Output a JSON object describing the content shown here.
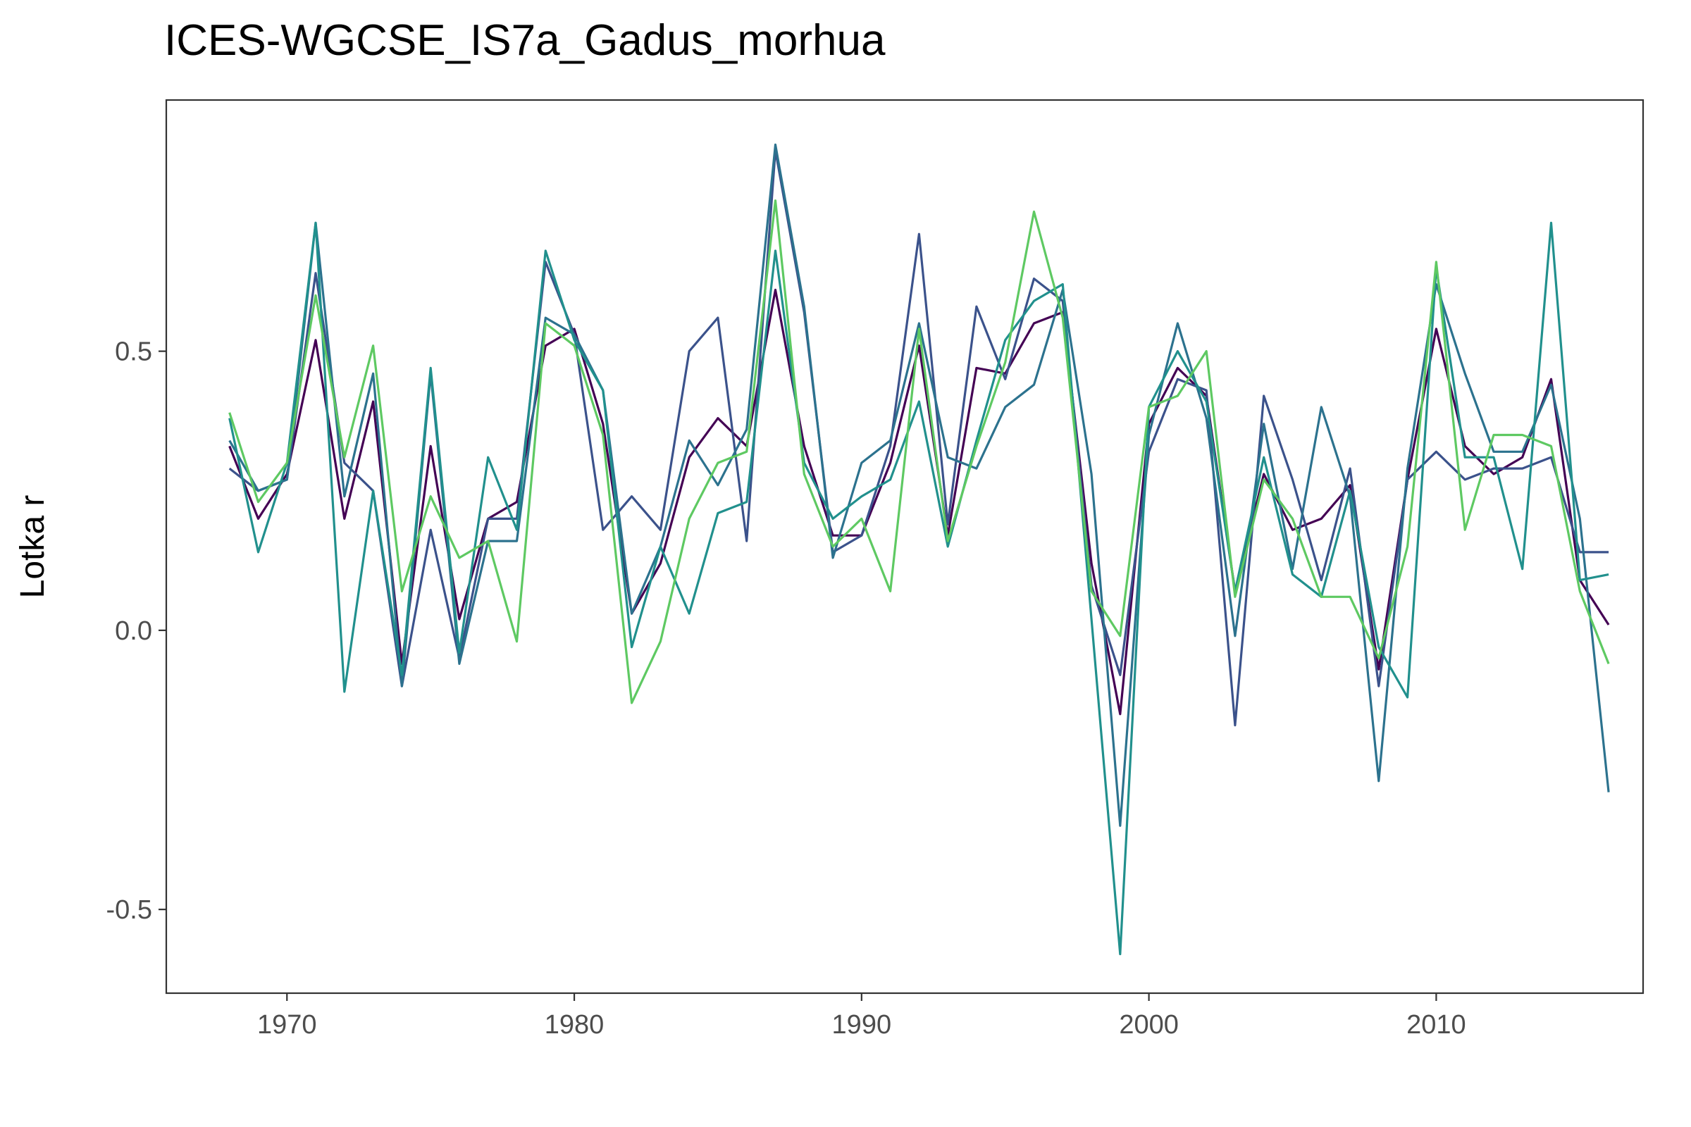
{
  "chart_data": {
    "type": "line",
    "title": "ICES-WGCSE_IS7a_Gadus_morhua",
    "xlabel": "",
    "ylabel": "Lotka r",
    "xlim": [
      1965.8,
      2017.2
    ],
    "ylim": [
      -0.65,
      0.95
    ],
    "xticks": [
      1970,
      1980,
      1990,
      2000,
      2010
    ],
    "xtick_labels": [
      "1970",
      "1980",
      "1990",
      "2000",
      "2010"
    ],
    "yticks": [
      -0.5,
      0.0,
      0.5
    ],
    "ytick_labels": [
      "-0.5",
      "0.0",
      "0.5"
    ],
    "grid": false,
    "legend": "none",
    "x": [
      1968,
      1969,
      1970,
      1971,
      1972,
      1973,
      1974,
      1975,
      1976,
      1977,
      1978,
      1979,
      1980,
      1981,
      1982,
      1983,
      1984,
      1985,
      1986,
      1987,
      1988,
      1989,
      1990,
      1991,
      1992,
      1993,
      1994,
      1995,
      1996,
      1997,
      1998,
      1999,
      2000,
      2001,
      2002,
      2003,
      2004,
      2005,
      2006,
      2007,
      2008,
      2009,
      2010,
      2011,
      2012,
      2013,
      2014,
      2015,
      2016
    ],
    "series": [
      {
        "color": "#440154",
        "values": [
          0.33,
          0.2,
          0.28,
          0.52,
          0.2,
          0.41,
          -0.06,
          0.33,
          0.02,
          0.2,
          0.23,
          0.51,
          0.54,
          0.37,
          0.03,
          0.12,
          0.31,
          0.38,
          0.33,
          0.61,
          0.33,
          0.17,
          0.17,
          0.3,
          0.51,
          0.17,
          0.47,
          0.46,
          0.55,
          0.57,
          0.12,
          -0.15,
          0.37,
          0.47,
          0.42,
          0.07,
          0.28,
          0.18,
          0.2,
          0.26,
          -0.07,
          0.27,
          0.54,
          0.33,
          0.28,
          0.31,
          0.45,
          0.09,
          0.01
        ]
      },
      {
        "color": "#3b528b",
        "values": [
          0.29,
          0.25,
          0.27,
          0.64,
          0.3,
          0.25,
          -0.1,
          0.18,
          -0.05,
          0.2,
          0.2,
          0.66,
          0.53,
          0.18,
          0.24,
          0.18,
          0.5,
          0.56,
          0.16,
          0.86,
          0.57,
          0.14,
          0.17,
          0.33,
          0.71,
          0.19,
          0.58,
          0.45,
          0.63,
          0.59,
          0.08,
          -0.08,
          0.32,
          0.45,
          0.43,
          -0.17,
          0.42,
          0.27,
          0.09,
          0.29,
          -0.1,
          0.27,
          0.32,
          0.27,
          0.29,
          0.29,
          0.31,
          0.14,
          0.14
        ]
      },
      {
        "color": "#2c728e",
        "values": [
          0.34,
          0.25,
          0.27,
          0.73,
          0.24,
          0.46,
          -0.1,
          0.46,
          -0.06,
          0.16,
          0.16,
          0.56,
          0.53,
          0.43,
          0.03,
          0.15,
          0.34,
          0.26,
          0.36,
          0.87,
          0.58,
          0.13,
          0.3,
          0.34,
          0.55,
          0.31,
          0.29,
          0.4,
          0.44,
          0.61,
          0.28,
          -0.35,
          0.35,
          0.55,
          0.38,
          -0.01,
          0.37,
          0.11,
          0.4,
          0.24,
          -0.27,
          0.29,
          0.62,
          0.46,
          0.32,
          0.32,
          0.44,
          0.2,
          -0.29
        ]
      },
      {
        "color": "#21908d",
        "values": [
          0.38,
          0.14,
          0.3,
          0.73,
          -0.11,
          0.25,
          -0.08,
          0.47,
          -0.04,
          0.31,
          0.18,
          0.68,
          0.52,
          0.43,
          -0.03,
          0.15,
          0.03,
          0.21,
          0.23,
          0.68,
          0.3,
          0.2,
          0.24,
          0.27,
          0.41,
          0.15,
          0.34,
          0.52,
          0.59,
          0.62,
          0.02,
          -0.58,
          0.4,
          0.5,
          0.41,
          0.07,
          0.31,
          0.1,
          0.06,
          0.25,
          -0.03,
          -0.12,
          0.65,
          0.31,
          0.31,
          0.11,
          0.73,
          0.09,
          0.1
        ]
      },
      {
        "color": "#5ec962",
        "values": [
          0.39,
          0.23,
          0.3,
          0.6,
          0.31,
          0.51,
          0.07,
          0.24,
          0.13,
          0.16,
          -0.02,
          0.55,
          0.51,
          0.35,
          -0.13,
          -0.02,
          0.2,
          0.3,
          0.32,
          0.77,
          0.28,
          0.15,
          0.2,
          0.07,
          0.54,
          0.16,
          0.33,
          0.48,
          0.75,
          0.56,
          0.07,
          -0.01,
          0.4,
          0.42,
          0.5,
          0.06,
          0.27,
          0.2,
          0.06,
          0.06,
          -0.05,
          0.15,
          0.66,
          0.18,
          0.35,
          0.35,
          0.33,
          0.07,
          -0.06
        ]
      }
    ]
  }
}
